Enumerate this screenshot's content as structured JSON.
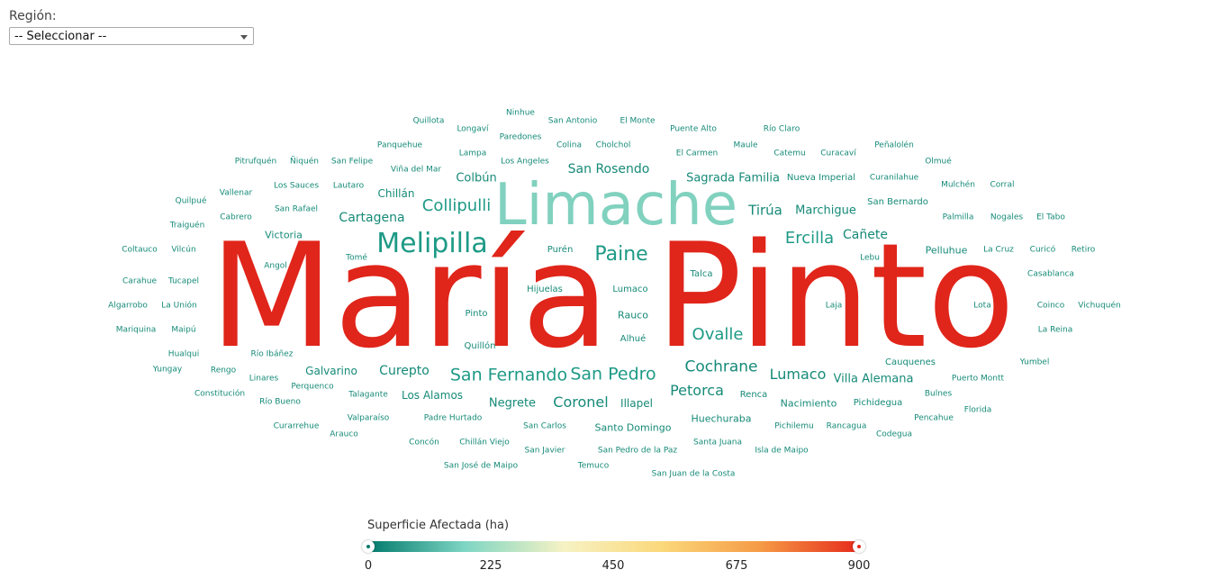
{
  "filter": {
    "label": "Región:",
    "selected": "-- Seleccionar --"
  },
  "legend": {
    "title": "Superficie Afectada (ha)",
    "min": 0,
    "max": 900,
    "ticks": [
      "0",
      "225",
      "450",
      "675",
      "900"
    ],
    "gradient": [
      "#00796b",
      "#7fd6c4",
      "#f6f2c4",
      "#fbd87a",
      "#f59a45",
      "#e62a1b"
    ],
    "min_handle_color": "#00796b",
    "max_handle_color": "#e62a1b"
  },
  "words": [
    {
      "t": "María Pinto",
      "c": "#e0251a"
    },
    {
      "t": "Limache",
      "c": "#81d1bf"
    },
    {
      "t": "Melipilla",
      "c": "#1e9a86"
    },
    {
      "t": "Paine",
      "c": "#1e9a86"
    },
    {
      "t": "Ovalle",
      "c": "#1e9a86"
    },
    {
      "t": "Ercilla",
      "c": "#1e9a86"
    },
    {
      "t": "Collipulli",
      "c": "#1e9a86"
    },
    {
      "t": "San Fernando",
      "c": "#1e9a86"
    },
    {
      "t": "San Pedro",
      "c": "#1e9a86"
    },
    {
      "t": "Cochrane",
      "c": "#168a78"
    },
    {
      "t": "Lumaco",
      "c": "#168a78"
    },
    {
      "t": "Petorca",
      "c": "#168a78"
    },
    {
      "t": "Coronel",
      "c": "#168a78"
    },
    {
      "t": "Tirúa",
      "c": "#168a78"
    },
    {
      "t": "Marchigue",
      "c": "#168a78"
    },
    {
      "t": "Cañete",
      "c": "#168a78"
    },
    {
      "t": "Cartagena",
      "c": "#168a78"
    },
    {
      "t": "San Rosendo",
      "c": "#168a78"
    },
    {
      "t": "Sagrada Familia",
      "c": "#168a78"
    },
    {
      "t": "Curepto",
      "c": "#168a78"
    },
    {
      "t": "Villa Alemana",
      "c": "#168a78"
    },
    {
      "t": "Colbún",
      "c": "#168a78"
    },
    {
      "t": "Chillán",
      "c": "#168a78"
    },
    {
      "t": "Negrete",
      "c": "#168a78"
    },
    {
      "t": "Illapel",
      "c": "#168a78"
    },
    {
      "t": "Victoria",
      "c": "#168a78"
    },
    {
      "t": "Pelluhue",
      "c": "#168a78"
    },
    {
      "t": "Los Alamos",
      "c": "#168a78"
    },
    {
      "t": "Galvarino",
      "c": "#168a78"
    },
    {
      "t": "Nacimiento",
      "c": "#168a78"
    },
    {
      "t": "Huechuraba",
      "c": "#168a78"
    },
    {
      "t": "Santo Domingo",
      "c": "#168a78"
    },
    {
      "t": "Nueva Imperial",
      "c": "#168a78"
    },
    {
      "t": "San Bernardo",
      "c": "#168a78"
    },
    {
      "t": "Rauco",
      "c": "#168a78"
    },
    {
      "t": "Purén",
      "c": "#168a78"
    },
    {
      "t": "Alhué",
      "c": "#168a78"
    },
    {
      "t": "Talca",
      "c": "#168a78"
    },
    {
      "t": "Renca",
      "c": "#168a78"
    },
    {
      "t": "Quillón",
      "c": "#168a78"
    },
    {
      "t": "Pinto",
      "c": "#168a78"
    },
    {
      "t": "Hijuelas",
      "c": "#168a78"
    },
    {
      "t": "Lumaco",
      "c": "#168a78"
    },
    {
      "t": "Cauquenes",
      "c": "#168a78"
    },
    {
      "t": "Pichidegua",
      "c": "#168a78"
    },
    {
      "t": "Puente Alto",
      "c": "#168a78"
    },
    {
      "t": "Río Claro",
      "c": "#168a78"
    },
    {
      "t": "El Monte",
      "c": "#168a78"
    },
    {
      "t": "San Antonio",
      "c": "#168a78"
    },
    {
      "t": "Ninhue",
      "c": "#168a78"
    },
    {
      "t": "Quillota",
      "c": "#168a78"
    },
    {
      "t": "Longaví",
      "c": "#168a78"
    },
    {
      "t": "Paredones",
      "c": "#168a78"
    },
    {
      "t": "Colina",
      "c": "#168a78"
    },
    {
      "t": "Cholchol",
      "c": "#168a78"
    },
    {
      "t": "El Carmen",
      "c": "#168a78"
    },
    {
      "t": "Maule",
      "c": "#168a78"
    },
    {
      "t": "Catemu",
      "c": "#168a78"
    },
    {
      "t": "Curacaví",
      "c": "#168a78"
    },
    {
      "t": "Peñalolén",
      "c": "#168a78"
    },
    {
      "t": "Olmué",
      "c": "#168a78"
    },
    {
      "t": "Panquehue",
      "c": "#168a78"
    },
    {
      "t": "Lampa",
      "c": "#168a78"
    },
    {
      "t": "Los Angeles",
      "c": "#168a78"
    },
    {
      "t": "Viña del Mar",
      "c": "#168a78"
    },
    {
      "t": "Pitrufquén",
      "c": "#168a78"
    },
    {
      "t": "Ñiquén",
      "c": "#168a78"
    },
    {
      "t": "San Felipe",
      "c": "#168a78"
    },
    {
      "t": "Curanilahue",
      "c": "#168a78"
    },
    {
      "t": "Mulchén",
      "c": "#168a78"
    },
    {
      "t": "Corral",
      "c": "#168a78"
    },
    {
      "t": "Los Sauces",
      "c": "#168a78"
    },
    {
      "t": "Lautaro",
      "c": "#168a78"
    },
    {
      "t": "Vallenar",
      "c": "#168a78"
    },
    {
      "t": "Quilpué",
      "c": "#168a78"
    },
    {
      "t": "San Rafael",
      "c": "#168a78"
    },
    {
      "t": "Palmilla",
      "c": "#168a78"
    },
    {
      "t": "Nogales",
      "c": "#168a78"
    },
    {
      "t": "El Tabo",
      "c": "#168a78"
    },
    {
      "t": "Cabrero",
      "c": "#168a78"
    },
    {
      "t": "Traiguén",
      "c": "#168a78"
    },
    {
      "t": "Coltauco",
      "c": "#168a78"
    },
    {
      "t": "Vilcún",
      "c": "#168a78"
    },
    {
      "t": "La Cruz",
      "c": "#168a78"
    },
    {
      "t": "Curicó",
      "c": "#168a78"
    },
    {
      "t": "Retiro",
      "c": "#168a78"
    },
    {
      "t": "Tomé",
      "c": "#168a78"
    },
    {
      "t": "Lebu",
      "c": "#168a78"
    },
    {
      "t": "Angol",
      "c": "#168a78"
    },
    {
      "t": "Casablanca",
      "c": "#168a78"
    },
    {
      "t": "Carahue",
      "c": "#168a78"
    },
    {
      "t": "Tucapel",
      "c": "#168a78"
    },
    {
      "t": "Algarrobo",
      "c": "#168a78"
    },
    {
      "t": "La Unión",
      "c": "#168a78"
    },
    {
      "t": "Laja",
      "c": "#168a78"
    },
    {
      "t": "Lota",
      "c": "#168a78"
    },
    {
      "t": "Coinco",
      "c": "#168a78"
    },
    {
      "t": "Vichuquén",
      "c": "#168a78"
    },
    {
      "t": "Mariquina",
      "c": "#168a78"
    },
    {
      "t": "Maipú",
      "c": "#168a78"
    },
    {
      "t": "La Reina",
      "c": "#168a78"
    },
    {
      "t": "Hualqui",
      "c": "#168a78"
    },
    {
      "t": "Río Ibáñez",
      "c": "#168a78"
    },
    {
      "t": "Yumbel",
      "c": "#168a78"
    },
    {
      "t": "Yungay",
      "c": "#168a78"
    },
    {
      "t": "Rengo",
      "c": "#168a78"
    },
    {
      "t": "Linares",
      "c": "#168a78"
    },
    {
      "t": "Perquenco",
      "c": "#168a78"
    },
    {
      "t": "Puerto Montt",
      "c": "#168a78"
    },
    {
      "t": "Constitución",
      "c": "#168a78"
    },
    {
      "t": "Talagante",
      "c": "#168a78"
    },
    {
      "t": "Bulnes",
      "c": "#168a78"
    },
    {
      "t": "Río Bueno",
      "c": "#168a78"
    },
    {
      "t": "Florida",
      "c": "#168a78"
    },
    {
      "t": "Padre Hurtado",
      "c": "#168a78"
    },
    {
      "t": "Valparaíso",
      "c": "#168a78"
    },
    {
      "t": "Pencahue",
      "c": "#168a78"
    },
    {
      "t": "Curarrehue",
      "c": "#168a78"
    },
    {
      "t": "San Carlos",
      "c": "#168a78"
    },
    {
      "t": "Pichilemu",
      "c": "#168a78"
    },
    {
      "t": "Rancagua",
      "c": "#168a78"
    },
    {
      "t": "Arauco",
      "c": "#168a78"
    },
    {
      "t": "Codegua",
      "c": "#168a78"
    },
    {
      "t": "Concón",
      "c": "#168a78"
    },
    {
      "t": "Chillán Viejo",
      "c": "#168a78"
    },
    {
      "t": "Santa Juana",
      "c": "#168a78"
    },
    {
      "t": "San Javier",
      "c": "#168a78"
    },
    {
      "t": "San Pedro de la Paz",
      "c": "#168a78"
    },
    {
      "t": "Isla de Maipo",
      "c": "#168a78"
    },
    {
      "t": "San José de Maipo",
      "c": "#168a78"
    },
    {
      "t": "Temuco",
      "c": "#168a78"
    },
    {
      "t": "San Juan de la Costa",
      "c": "#168a78"
    }
  ]
}
